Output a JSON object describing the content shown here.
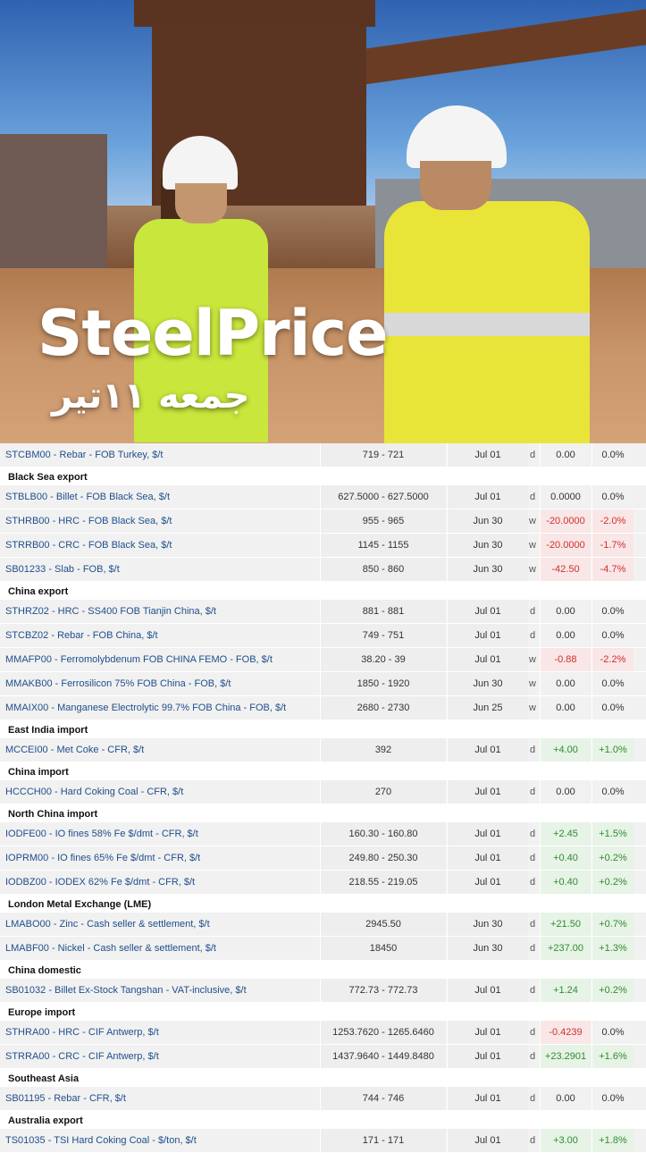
{
  "hero": {
    "title": "SteelPrice",
    "subtitle": "جمعه ۱۱تیر"
  },
  "sections": [
    {
      "header": "",
      "rows": [
        {
          "code_name": "STCBM00 - Rebar - FOB Turkey, $/t",
          "range": "719 - 721",
          "date": "Jul 01",
          "freq": "d",
          "change": "0.00",
          "pct": "0.0%",
          "trend": "neutral"
        }
      ]
    },
    {
      "header": "Black Sea export",
      "rows": [
        {
          "code_name": "STBLB00 - Billet - FOB Black Sea, $/t",
          "range": "627.5000 - 627.5000",
          "date": "Jul 01",
          "freq": "d",
          "change": "0.0000",
          "pct": "0.0%",
          "trend": "neutral"
        },
        {
          "code_name": "STHRB00 - HRC - FOB Black Sea, $/t",
          "range": "955 - 965",
          "date": "Jun 30",
          "freq": "w",
          "change": "-20.0000",
          "pct": "-2.0%",
          "trend": "down"
        },
        {
          "code_name": "STRRB00 - CRC - FOB Black Sea, $/t",
          "range": "1145 - 1155",
          "date": "Jun 30",
          "freq": "w",
          "change": "-20.0000",
          "pct": "-1.7%",
          "trend": "down"
        },
        {
          "code_name": "SB01233 - Slab - FOB, $/t",
          "range": "850 - 860",
          "date": "Jun 30",
          "freq": "w",
          "change": "-42.50",
          "pct": "-4.7%",
          "trend": "down"
        }
      ]
    },
    {
      "header": "China export",
      "rows": [
        {
          "code_name": "STHRZ02 - HRC - SS400 FOB Tianjin China, $/t",
          "range": "881 - 881",
          "date": "Jul 01",
          "freq": "d",
          "change": "0.00",
          "pct": "0.0%",
          "trend": "neutral"
        },
        {
          "code_name": "STCBZ02 - Rebar - FOB China, $/t",
          "range": "749 - 751",
          "date": "Jul 01",
          "freq": "d",
          "change": "0.00",
          "pct": "0.0%",
          "trend": "neutral"
        },
        {
          "code_name": "MMAFP00 - Ferromolybdenum FOB CHINA FEMO - FOB, $/t",
          "range": "38.20 - 39",
          "date": "Jul 01",
          "freq": "w",
          "change": "-0.88",
          "pct": "-2.2%",
          "trend": "down"
        },
        {
          "code_name": "MMAKB00 - Ferrosilicon 75% FOB China - FOB, $/t",
          "range": "1850 - 1920",
          "date": "Jun 30",
          "freq": "w",
          "change": "0.00",
          "pct": "0.0%",
          "trend": "neutral"
        },
        {
          "code_name": "MMAIX00 - Manganese Electrolytic 99.7% FOB China - FOB, $/t",
          "range": "2680 - 2730",
          "date": "Jun 25",
          "freq": "w",
          "change": "0.00",
          "pct": "0.0%",
          "trend": "neutral"
        }
      ]
    },
    {
      "header": "East India import",
      "rows": [
        {
          "code_name": "MCCEI00 - Met Coke - CFR, $/t",
          "range": "392",
          "date": "Jul 01",
          "freq": "d",
          "change": "+4.00",
          "pct": "+1.0%",
          "trend": "up"
        }
      ]
    },
    {
      "header": "China import",
      "rows": [
        {
          "code_name": "HCCCH00 - Hard Coking Coal - CFR, $/t",
          "range": "270",
          "date": "Jul 01",
          "freq": "d",
          "change": "0.00",
          "pct": "0.0%",
          "trend": "neutral"
        }
      ]
    },
    {
      "header": "North China import",
      "rows": [
        {
          "code_name": "IODFE00 - IO fines 58% Fe $/dmt - CFR, $/t",
          "range": "160.30 - 160.80",
          "date": "Jul 01",
          "freq": "d",
          "change": "+2.45",
          "pct": "+1.5%",
          "trend": "up"
        },
        {
          "code_name": "IOPRM00 - IO fines 65% Fe $/dmt - CFR, $/t",
          "range": "249.80 - 250.30",
          "date": "Jul 01",
          "freq": "d",
          "change": "+0.40",
          "pct": "+0.2%",
          "trend": "up"
        },
        {
          "code_name": "IODBZ00 - IODEX 62% Fe $/dmt - CFR, $/t",
          "range": "218.55 - 219.05",
          "date": "Jul 01",
          "freq": "d",
          "change": "+0.40",
          "pct": "+0.2%",
          "trend": "up"
        }
      ]
    },
    {
      "header": "London Metal Exchange (LME)",
      "rows": [
        {
          "code_name": "LMABO00 - Zinc - Cash seller & settlement, $/t",
          "range": "2945.50",
          "date": "Jun 30",
          "freq": "d",
          "change": "+21.50",
          "pct": "+0.7%",
          "trend": "up"
        },
        {
          "code_name": "LMABF00 - Nickel - Cash seller & settlement, $/t",
          "range": "18450",
          "date": "Jun 30",
          "freq": "d",
          "change": "+237.00",
          "pct": "+1.3%",
          "trend": "up"
        }
      ]
    },
    {
      "header": "China domestic",
      "rows": [
        {
          "code_name": "SB01032 - Billet Ex-Stock Tangshan - VAT-inclusive, $/t",
          "range": "772.73 - 772.73",
          "date": "Jul 01",
          "freq": "d",
          "change": "+1.24",
          "pct": "+0.2%",
          "trend": "up"
        }
      ]
    },
    {
      "header": "Europe import",
      "rows": [
        {
          "code_name": "STHRA00 - HRC - CIF Antwerp, $/t",
          "range": "1253.7620 - 1265.6460",
          "date": "Jul 01",
          "freq": "d",
          "change": "-0.4239",
          "pct": "0.0%",
          "trend": "down-zero"
        },
        {
          "code_name": "STRRA00 - CRC - CIF Antwerp, $/t",
          "range": "1437.9640 - 1449.8480",
          "date": "Jul 01",
          "freq": "d",
          "change": "+23.2901",
          "pct": "+1.6%",
          "trend": "up"
        }
      ]
    },
    {
      "header": "Southeast Asia",
      "rows": [
        {
          "code_name": "SB01195 - Rebar - CFR, $/t",
          "range": "744 - 746",
          "date": "Jul 01",
          "freq": "d",
          "change": "0.00",
          "pct": "0.0%",
          "trend": "neutral"
        }
      ]
    },
    {
      "header": "Australia export",
      "rows": [
        {
          "code_name": "TS01035 - TSI Hard Coking Coal - $/ton, $/t",
          "range": "171 - 171",
          "date": "Jul 01",
          "freq": "d",
          "change": "+3.00",
          "pct": "+1.8%",
          "trend": "up"
        }
      ]
    }
  ]
}
